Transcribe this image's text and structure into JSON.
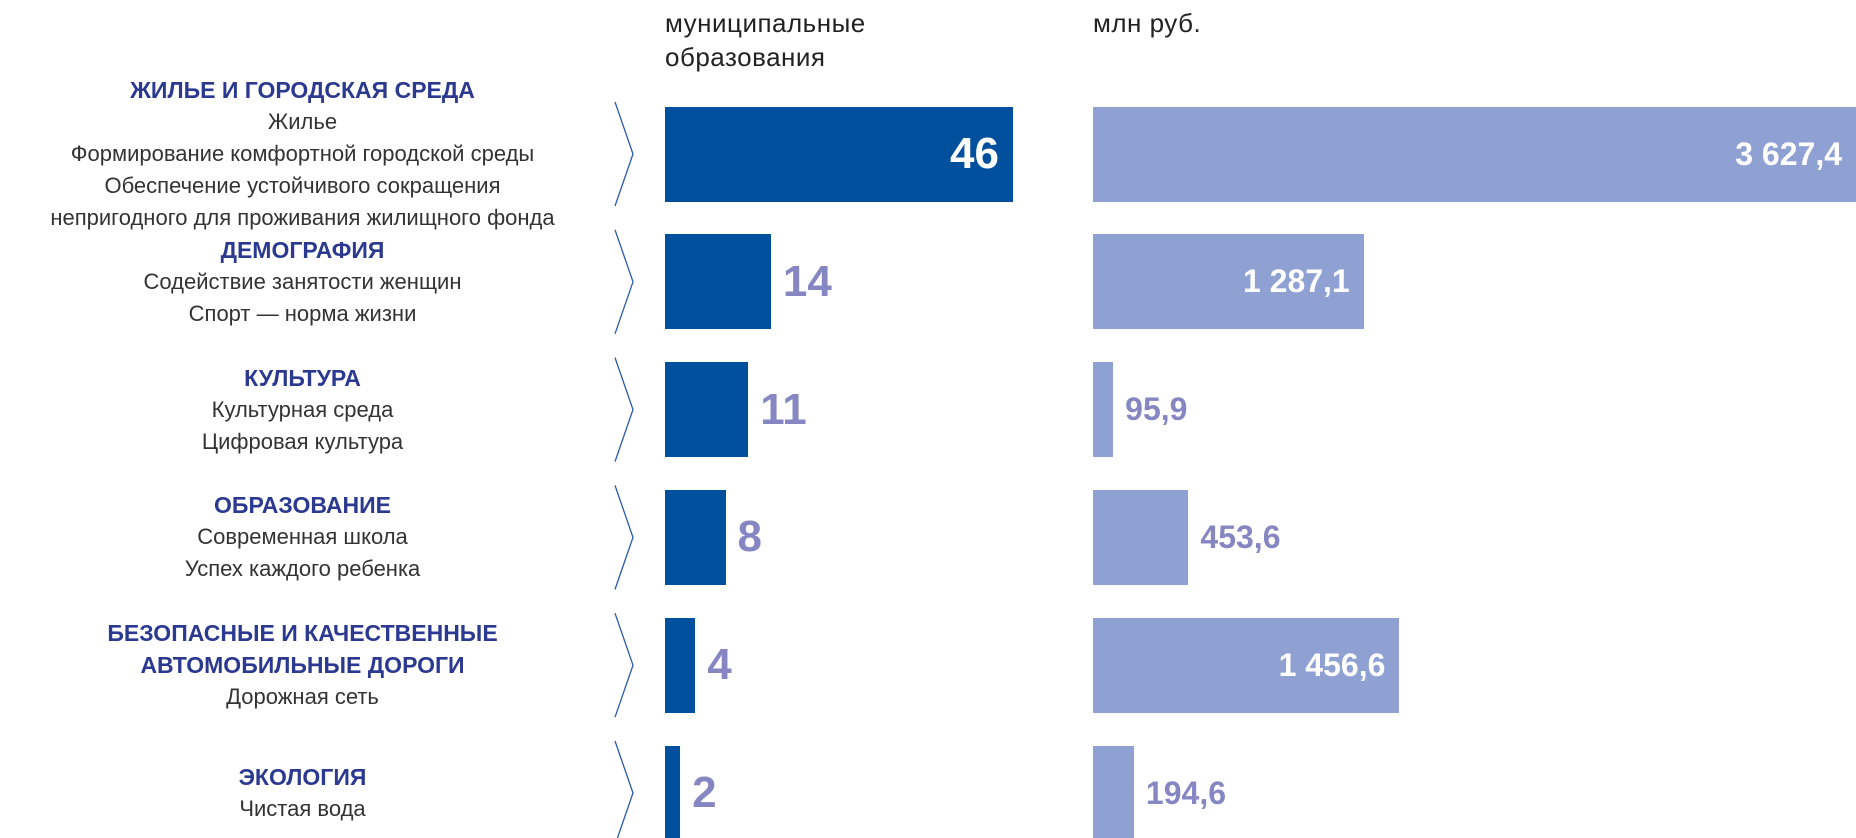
{
  "chart_data": {
    "type": "bar",
    "orientation": "horizontal",
    "categories": [
      {
        "title": [
          "ЖИЛЬЕ И ГОРОДСКАЯ СРЕДА"
        ],
        "items": [
          "Жилье",
          "Формирование комфортной городской среды",
          "Обеспечение устойчивого сокращения",
          "непригодного для проживания жилищного фонда"
        ]
      },
      {
        "title": [
          "ДЕМОГРАФИЯ"
        ],
        "items": [
          "Содействие занятости женщин",
          "Спорт — норма жизни"
        ]
      },
      {
        "title": [
          "КУЛЬТУРА"
        ],
        "items": [
          "Культурная среда",
          "Цифровая культура"
        ]
      },
      {
        "title": [
          "ОБРАЗОВАНИЕ"
        ],
        "items": [
          "Современная школа",
          "Успех каждого ребенка"
        ]
      },
      {
        "title": [
          "БЕЗОПАСНЫЕ И КАЧЕСТВЕННЫЕ",
          "АВТОМОБИЛЬНЫЕ ДОРОГИ"
        ],
        "items": [
          "Дорожная сеть"
        ]
      },
      {
        "title": [
          "ЭКОЛОГИЯ"
        ],
        "items": [
          "Чистая вода"
        ]
      }
    ],
    "series": [
      {
        "name": "муниципальные образования",
        "color": "#00509e",
        "values": [
          46,
          14,
          11,
          8,
          4,
          2
        ]
      },
      {
        "name": "млн руб.",
        "color": "#8fa0d3",
        "values": [
          3627.4,
          1287.1,
          95.9,
          453.6,
          1456.6,
          194.6
        ],
        "value_labels": [
          "3 627,4",
          "1 287,1",
          "95,9",
          "453,6",
          "1 456,6",
          "194,6"
        ]
      }
    ]
  }
}
